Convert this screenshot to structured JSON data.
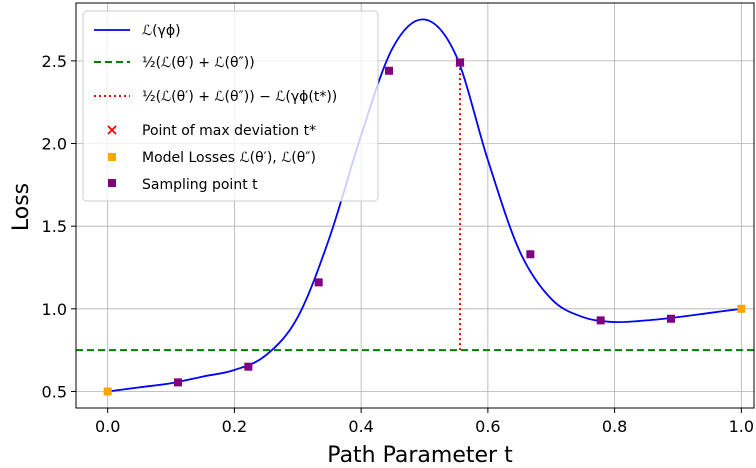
{
  "chart_data": {
    "type": "line",
    "xlabel": "Path Parameter t",
    "ylabel": "Loss",
    "xlim": [
      -0.05,
      1.02
    ],
    "ylim": [
      0.4,
      2.85
    ],
    "x_ticks": [
      0.0,
      0.2,
      0.4,
      0.6,
      0.8,
      1.0
    ],
    "x_tick_labels": [
      "0.0",
      "0.2",
      "0.4",
      "0.6",
      "0.8",
      "1.0"
    ],
    "y_ticks": [
      0.5,
      1.0,
      1.5,
      2.0,
      2.5
    ],
    "y_tick_labels": [
      "0.5",
      "1.0",
      "1.5",
      "2.0",
      "2.5"
    ],
    "grid": true,
    "legend_position": "top-left",
    "series": [
      {
        "name": "ℒ(γϕ)",
        "kind": "line",
        "color": "#0000ff",
        "x": [
          0.0,
          0.05,
          0.1,
          0.15,
          0.2,
          0.25,
          0.3,
          0.35,
          0.4,
          0.45,
          0.5,
          0.55,
          0.6,
          0.65,
          0.7,
          0.75,
          0.8,
          0.85,
          0.9,
          0.95,
          1.0
        ],
        "y": [
          0.5,
          0.525,
          0.55,
          0.59,
          0.63,
          0.72,
          0.95,
          1.43,
          2.05,
          2.58,
          2.75,
          2.53,
          1.9,
          1.35,
          1.06,
          0.95,
          0.92,
          0.93,
          0.95,
          0.975,
          1.0
        ]
      },
      {
        "name": "½(ℒ(θ′) + ℒ(θ″))",
        "kind": "hline",
        "color": "#008000",
        "y": 0.75
      },
      {
        "name": "½(ℒ(θ′) + ℒ(θ″)) − ℒ(γϕ(t*))",
        "kind": "vline",
        "color": "#ff0000",
        "x": 0.556,
        "y_from": 0.75,
        "y_to": 2.49
      },
      {
        "name": "Point of max deviation t*",
        "kind": "scatter",
        "marker": "x",
        "color": "#ff0000",
        "x": [
          0.556
        ],
        "y": [
          2.49
        ]
      },
      {
        "name": "Model Losses ℒ(θ′), ℒ(θ″)",
        "kind": "scatter",
        "marker": "square",
        "color": "#ffa500",
        "x": [
          0.0,
          1.0
        ],
        "y": [
          0.5,
          1.0
        ]
      },
      {
        "name": "Sampling point t",
        "kind": "scatter",
        "marker": "square",
        "color": "#800080",
        "x": [
          0.111,
          0.222,
          0.333,
          0.444,
          0.556,
          0.667,
          0.778,
          0.889
        ],
        "y": [
          0.555,
          0.65,
          1.16,
          2.44,
          2.49,
          1.33,
          0.93,
          0.94
        ]
      }
    ]
  }
}
